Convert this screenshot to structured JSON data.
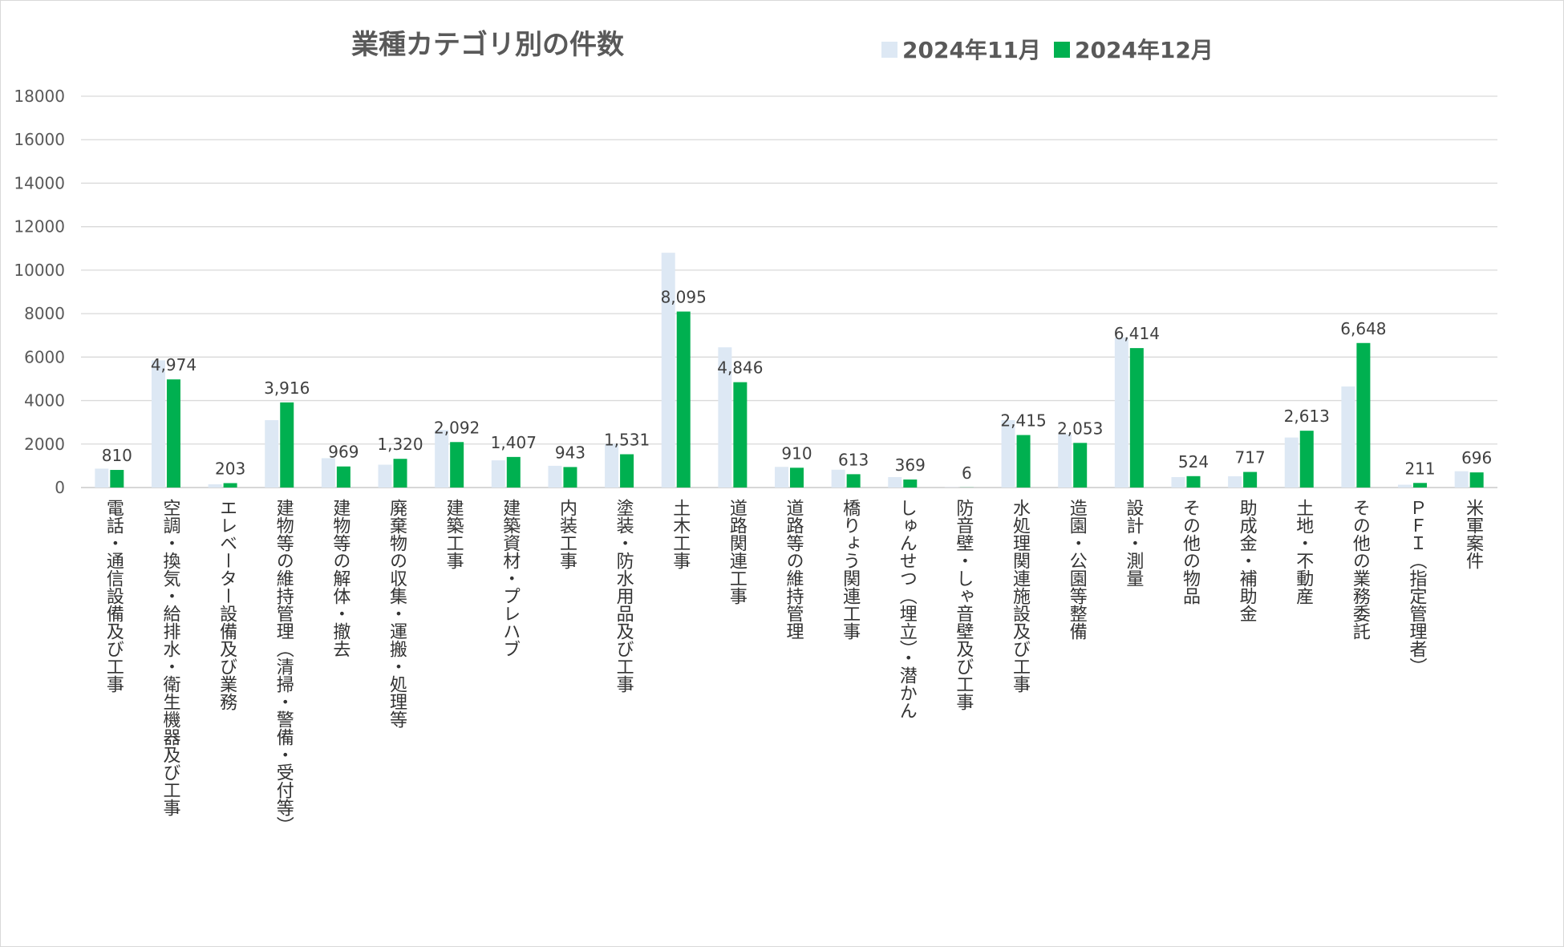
{
  "chart_data": {
    "type": "bar",
    "title": "業種カテゴリ別の件数",
    "xlabel": "",
    "ylabel": "",
    "ylim": [
      0,
      18000
    ],
    "yticks": [
      0,
      2000,
      4000,
      6000,
      8000,
      10000,
      12000,
      14000,
      16000,
      18000
    ],
    "grid": true,
    "legend_position": "top",
    "categories": [
      "電話・通信設備及び工事",
      "空調・換気・給排水・衛生機器及び工事",
      "エレベーター設備及び業務",
      "建物等の維持管理（清掃・警備・受付等）",
      "建物等の解体・撤去",
      "廃棄物の収集・運搬・処理等",
      "建築工事",
      "建築資材・プレハブ",
      "内装工事",
      "塗装・防水用品及び工事",
      "土木工事",
      "道路関連工事",
      "道路等の維持管理",
      "橋りょう関連工事",
      "しゅんせつ（埋立）・潜かん",
      "防音壁・しゃ音壁及び工事",
      "水処理関連施設及び工事",
      "造園・公園等整備",
      "設計・測量",
      "その他の物品",
      "助成金・補助金",
      "土地・不動産",
      "その他の業務委託",
      "ＰＦＩ（指定管理者）",
      "米軍案件"
    ],
    "series": [
      {
        "name": "2024年11月",
        "color": "#dde8f4",
        "values": [
          870,
          5850,
          150,
          3100,
          1350,
          1050,
          2650,
          1250,
          1000,
          2000,
          10800,
          6450,
          950,
          820,
          480,
          10,
          3100,
          2450,
          6900,
          480,
          520,
          2300,
          4650,
          130,
          750
        ]
      },
      {
        "name": "2024年12月",
        "color": "#00b050",
        "values": [
          810,
          4974,
          203,
          3916,
          969,
          1320,
          2092,
          1407,
          943,
          1531,
          8095,
          4846,
          910,
          613,
          369,
          6,
          2415,
          2053,
          6414,
          524,
          717,
          2613,
          6648,
          211,
          696
        ],
        "labels": [
          "810",
          "4,974",
          "203",
          "3,916",
          "969",
          "1,320",
          "2,092",
          "1,407",
          "943",
          "1,531",
          "8,095",
          "4,846",
          "910",
          "613",
          "369",
          "6",
          "2,415",
          "2,053",
          "6,414",
          "524",
          "717",
          "2,613",
          "6,648",
          "211",
          "696"
        ]
      }
    ]
  }
}
